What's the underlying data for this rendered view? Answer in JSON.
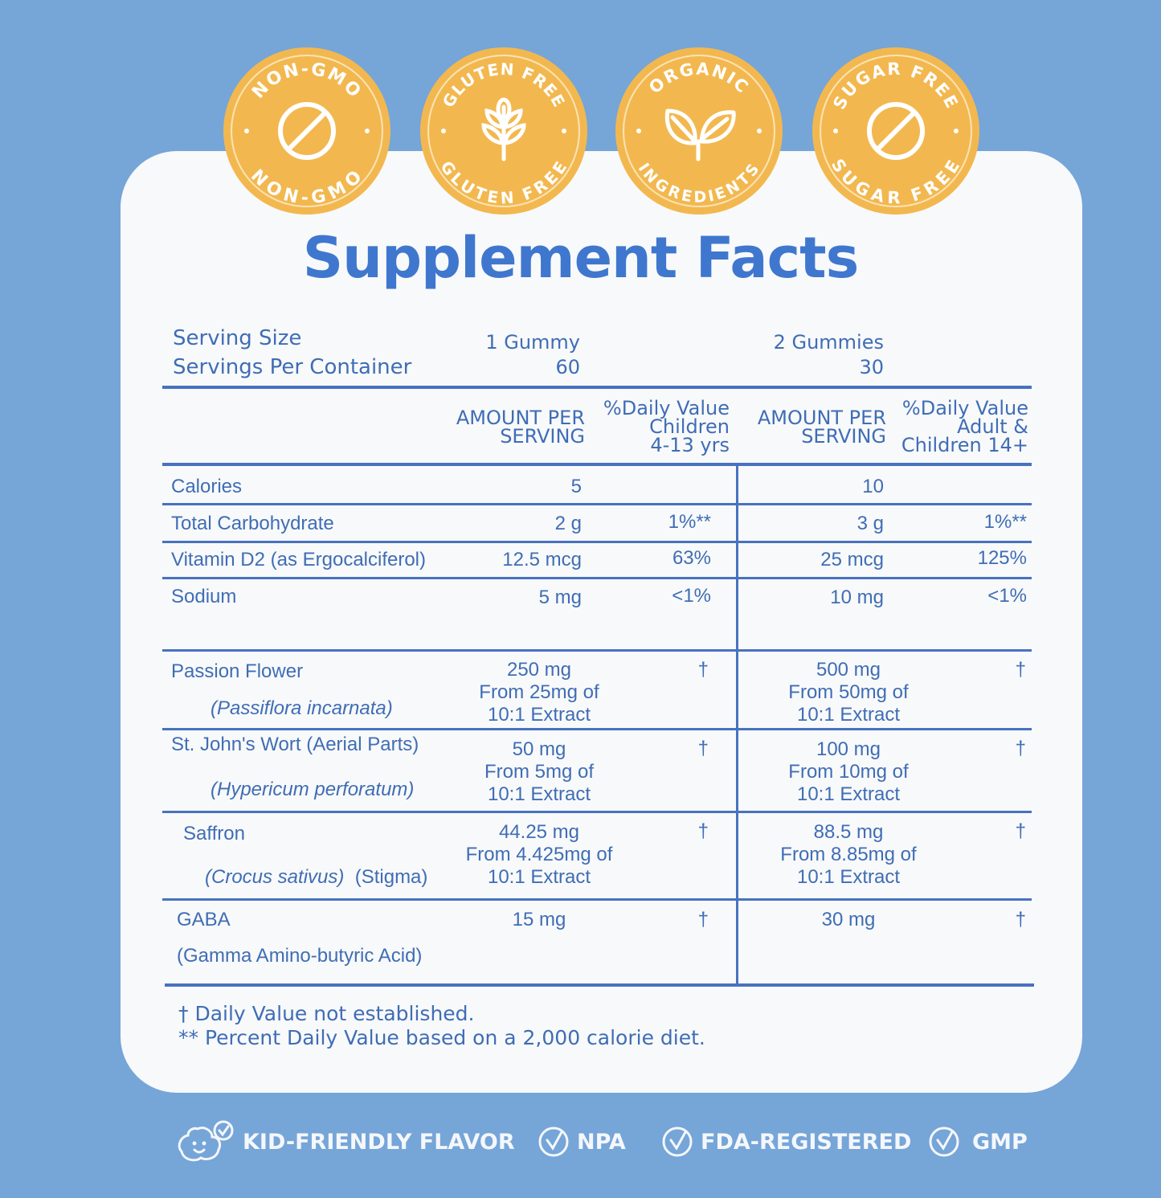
{
  "badges": [
    {
      "name": "non-gmo",
      "top": "NON-GMO",
      "bottom": "NON-GMO",
      "icon": "prohibit-icon"
    },
    {
      "name": "gluten-free",
      "top": "GLUTEN FREE",
      "bottom": "GLUTEN FREE",
      "icon": "wheat-icon"
    },
    {
      "name": "organic",
      "top": "ORGANIC",
      "bottom": "INGREDIENTS",
      "icon": "leaf-icon"
    },
    {
      "name": "sugar-free",
      "top": "SUGAR FREE",
      "bottom": "SUGAR FREE",
      "icon": "prohibit-icon"
    }
  ],
  "title": "Supplement Facts",
  "serving": {
    "size_label": "Serving Size",
    "per_container_label": "Servings Per Container",
    "children_size": "1 Gummy",
    "children_servings": "60",
    "adult_size": "2 Gummies",
    "adult_servings": "30"
  },
  "headers": {
    "amount1": [
      "AMOUNT PER",
      "SERVING"
    ],
    "dv_children": [
      "%Daily Value",
      "Children",
      "4-13 yrs"
    ],
    "amount2": [
      "AMOUNT PER",
      "SERVING"
    ],
    "dv_adult": [
      "%Daily Value",
      "Adult &",
      "Children 14+"
    ]
  },
  "rows": {
    "calories": {
      "name": "Calories",
      "a1": "5",
      "a2": "10"
    },
    "carb": {
      "name": "Total Carbohydrate",
      "a1": "2 g",
      "d1": "1%**",
      "a2": "3 g",
      "d2": "1%**"
    },
    "vitd": {
      "name": "Vitamin D2 (as Ergocalciferol)",
      "a1": "12.5 mcg",
      "d1": "63%",
      "a2": "25 mcg",
      "d2": "125%"
    },
    "sodium": {
      "name": "Sodium",
      "a1": "5 mg",
      "d1": "<1%",
      "a2": "10 mg",
      "d2": "<1%"
    },
    "passion": {
      "name": "Passion Flower",
      "latin": "(Passiflora incarnata)",
      "a1": [
        "250 mg",
        "From 25mg of",
        "10:1 Extract"
      ],
      "d1": "†",
      "a2": [
        "500 mg",
        "From 50mg of",
        "10:1 Extract"
      ],
      "d2": "†"
    },
    "stjohn": {
      "name": "St. John's Wort (Aerial Parts)",
      "latin": "(Hypericum perforatum)",
      "a1": [
        "50 mg",
        "From 5mg of",
        "10:1 Extract"
      ],
      "d1": "†",
      "a2": [
        "100 mg",
        "From 10mg of",
        "10:1 Extract"
      ],
      "d2": "†"
    },
    "saffron": {
      "name": "Saffron",
      "latin": "(Crocus sativus)",
      "part": "(Stigma)",
      "a1": [
        "44.25 mg",
        "From 4.425mg of",
        "10:1 Extract"
      ],
      "d1": "†",
      "a2": [
        "88.5 mg",
        "From 8.85mg of",
        "10:1 Extract"
      ],
      "d2": "†"
    },
    "gaba": {
      "name": "GABA",
      "sub": "(Gamma Amino-butyric Acid)",
      "a1": "15 mg",
      "d1": "†",
      "a2": "30 mg",
      "d2": "†"
    }
  },
  "footnotes": [
    "† Daily Value  not established.",
    "** Percent Daily Value based on a 2,000 calorie diet."
  ],
  "bottom_badges": [
    "KID-FRIENDLY FLAVOR",
    "NPA",
    "FDA-REGISTERED",
    "GMP"
  ],
  "colors": {
    "background": "#76a5d8",
    "card": "#f8f9fa",
    "badge": "#f2b84f",
    "text": "#3f6db5",
    "title": "#3f77cf"
  }
}
